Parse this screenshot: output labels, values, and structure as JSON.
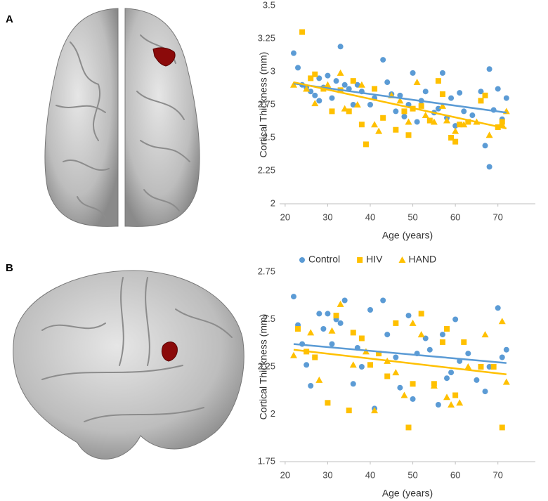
{
  "chart_data": [
    {
      "type": "scatter",
      "panel_label": "A",
      "ylabel": "Cortical Thickness (mm)",
      "xlabel": "Age (years)",
      "xlim": [
        18.7,
        78.8
      ],
      "xticks": [
        20,
        30,
        40,
        50,
        60,
        70
      ],
      "ylim": [
        2,
        3.5
      ],
      "yticks": [
        2,
        2.25,
        2.5,
        2.75,
        3,
        3.25,
        3.5
      ],
      "series": [
        {
          "color": "#5b9bd5",
          "marker": "circle",
          "x": [
            22,
            23,
            24,
            25,
            26,
            27,
            28,
            28,
            29,
            30,
            31,
            32,
            33,
            34,
            35,
            36,
            37,
            38,
            40,
            41,
            43,
            44,
            45,
            46,
            47,
            48,
            49,
            50,
            51,
            52,
            53,
            55,
            56,
            57,
            58,
            59,
            60,
            61,
            62,
            64,
            66,
            67,
            68,
            68,
            69,
            70,
            71,
            72
          ],
          "values": [
            3.14,
            3.03,
            2.9,
            2.88,
            2.85,
            2.82,
            2.95,
            2.78,
            2.88,
            2.97,
            2.8,
            2.93,
            3.19,
            2.9,
            2.87,
            2.75,
            2.9,
            2.85,
            2.75,
            2.8,
            3.09,
            2.92,
            2.83,
            2.7,
            2.82,
            2.66,
            2.75,
            2.99,
            2.62,
            2.78,
            2.85,
            2.69,
            2.72,
            2.99,
            2.65,
            2.8,
            2.59,
            2.84,
            2.7,
            2.67,
            2.85,
            2.44,
            3.02,
            2.28,
            2.71,
            2.87,
            2.64,
            2.8
          ]
        },
        {
          "color": "#ffc000",
          "marker": "square",
          "x": [
            24,
            26,
            27,
            29,
            31,
            33,
            35,
            36,
            38,
            39,
            41,
            43,
            46,
            48,
            49,
            50,
            52,
            54,
            56,
            57,
            59,
            60,
            61,
            63,
            66,
            67,
            70,
            71
          ],
          "values": [
            3.3,
            2.95,
            2.98,
            2.87,
            2.7,
            2.86,
            2.7,
            2.93,
            2.6,
            2.45,
            2.87,
            2.65,
            2.56,
            2.7,
            2.52,
            2.72,
            2.74,
            2.63,
            2.93,
            2.83,
            2.5,
            2.47,
            2.6,
            2.62,
            2.78,
            2.82,
            2.58,
            2.62
          ]
        },
        {
          "color": "#ffc000",
          "marker": "triangle",
          "x": [
            22,
            25,
            27,
            30,
            33,
            34,
            37,
            38,
            41,
            42,
            45,
            47,
            49,
            51,
            53,
            55,
            57,
            58,
            60,
            62,
            65,
            68,
            71,
            72
          ],
          "values": [
            2.9,
            2.87,
            2.76,
            2.9,
            2.99,
            2.72,
            2.75,
            2.9,
            2.6,
            2.55,
            2.82,
            2.78,
            2.62,
            2.92,
            2.67,
            2.62,
            2.74,
            2.63,
            2.55,
            2.6,
            2.62,
            2.52,
            2.6,
            2.7
          ]
        }
      ],
      "trendlines": [
        {
          "color": "#5b9bd5",
          "x": [
            22,
            72
          ],
          "values": [
            2.91,
            2.69
          ]
        },
        {
          "color": "#ffc000",
          "x": [
            22,
            72
          ],
          "values": [
            2.92,
            2.57
          ]
        }
      ]
    },
    {
      "type": "scatter",
      "panel_label": "B",
      "ylabel": "Cortical Thickness (mm)",
      "xlabel": "Age (years)",
      "xlim": [
        18.7,
        78.8
      ],
      "xticks": [
        20,
        30,
        40,
        50,
        60,
        70
      ],
      "ylim": [
        1.75,
        2.75
      ],
      "yticks": [
        1.75,
        2,
        2.25,
        2.5,
        2.75
      ],
      "legend": "top",
      "series": [
        {
          "name": "Control",
          "color": "#5b9bd5",
          "marker": "circle",
          "x": [
            22,
            23,
            24,
            25,
            26,
            27,
            28,
            29,
            30,
            31,
            32,
            33,
            34,
            36,
            37,
            38,
            40,
            41,
            43,
            44,
            46,
            47,
            49,
            50,
            51,
            53,
            54,
            56,
            57,
            58,
            59,
            60,
            61,
            63,
            65,
            67,
            68,
            70,
            71,
            72
          ],
          "values": [
            2.62,
            2.47,
            2.37,
            2.26,
            2.15,
            2.3,
            2.53,
            2.45,
            2.53,
            2.37,
            2.5,
            2.48,
            2.6,
            2.16,
            2.35,
            2.25,
            2.55,
            2.03,
            2.6,
            2.42,
            2.3,
            2.14,
            2.52,
            2.08,
            2.32,
            2.4,
            2.34,
            2.05,
            2.42,
            2.19,
            2.22,
            2.5,
            2.28,
            2.32,
            2.18,
            2.12,
            2.25,
            2.56,
            2.3,
            2.34
          ]
        },
        {
          "name": "HIV",
          "color": "#ffc000",
          "marker": "square",
          "x": [
            23,
            25,
            27,
            30,
            32,
            35,
            36,
            38,
            40,
            42,
            44,
            46,
            49,
            50,
            52,
            55,
            57,
            58,
            60,
            62,
            66,
            69,
            71
          ],
          "values": [
            2.45,
            2.33,
            2.3,
            2.06,
            2.52,
            2.02,
            2.43,
            2.4,
            2.26,
            2.32,
            2.2,
            2.48,
            1.93,
            2.16,
            2.53,
            2.16,
            2.38,
            2.45,
            2.1,
            2.38,
            2.25,
            2.25,
            1.93
          ]
        },
        {
          "name": "HAND",
          "color": "#ffc000",
          "marker": "triangle",
          "x": [
            22,
            26,
            28,
            31,
            33,
            36,
            39,
            41,
            44,
            46,
            48,
            50,
            52,
            55,
            58,
            59,
            61,
            63,
            67,
            71,
            72
          ],
          "values": [
            2.31,
            2.43,
            2.18,
            2.44,
            2.58,
            2.26,
            2.33,
            2.02,
            2.28,
            2.22,
            2.1,
            2.48,
            2.42,
            2.15,
            2.09,
            2.05,
            2.06,
            2.25,
            2.42,
            2.49,
            2.17
          ]
        }
      ],
      "trendlines": [
        {
          "color": "#5b9bd5",
          "x": [
            22,
            72
          ],
          "values": [
            2.37,
            2.27
          ]
        },
        {
          "color": "#ffc000",
          "x": [
            22,
            72
          ],
          "values": [
            2.34,
            2.21
          ]
        }
      ]
    }
  ]
}
